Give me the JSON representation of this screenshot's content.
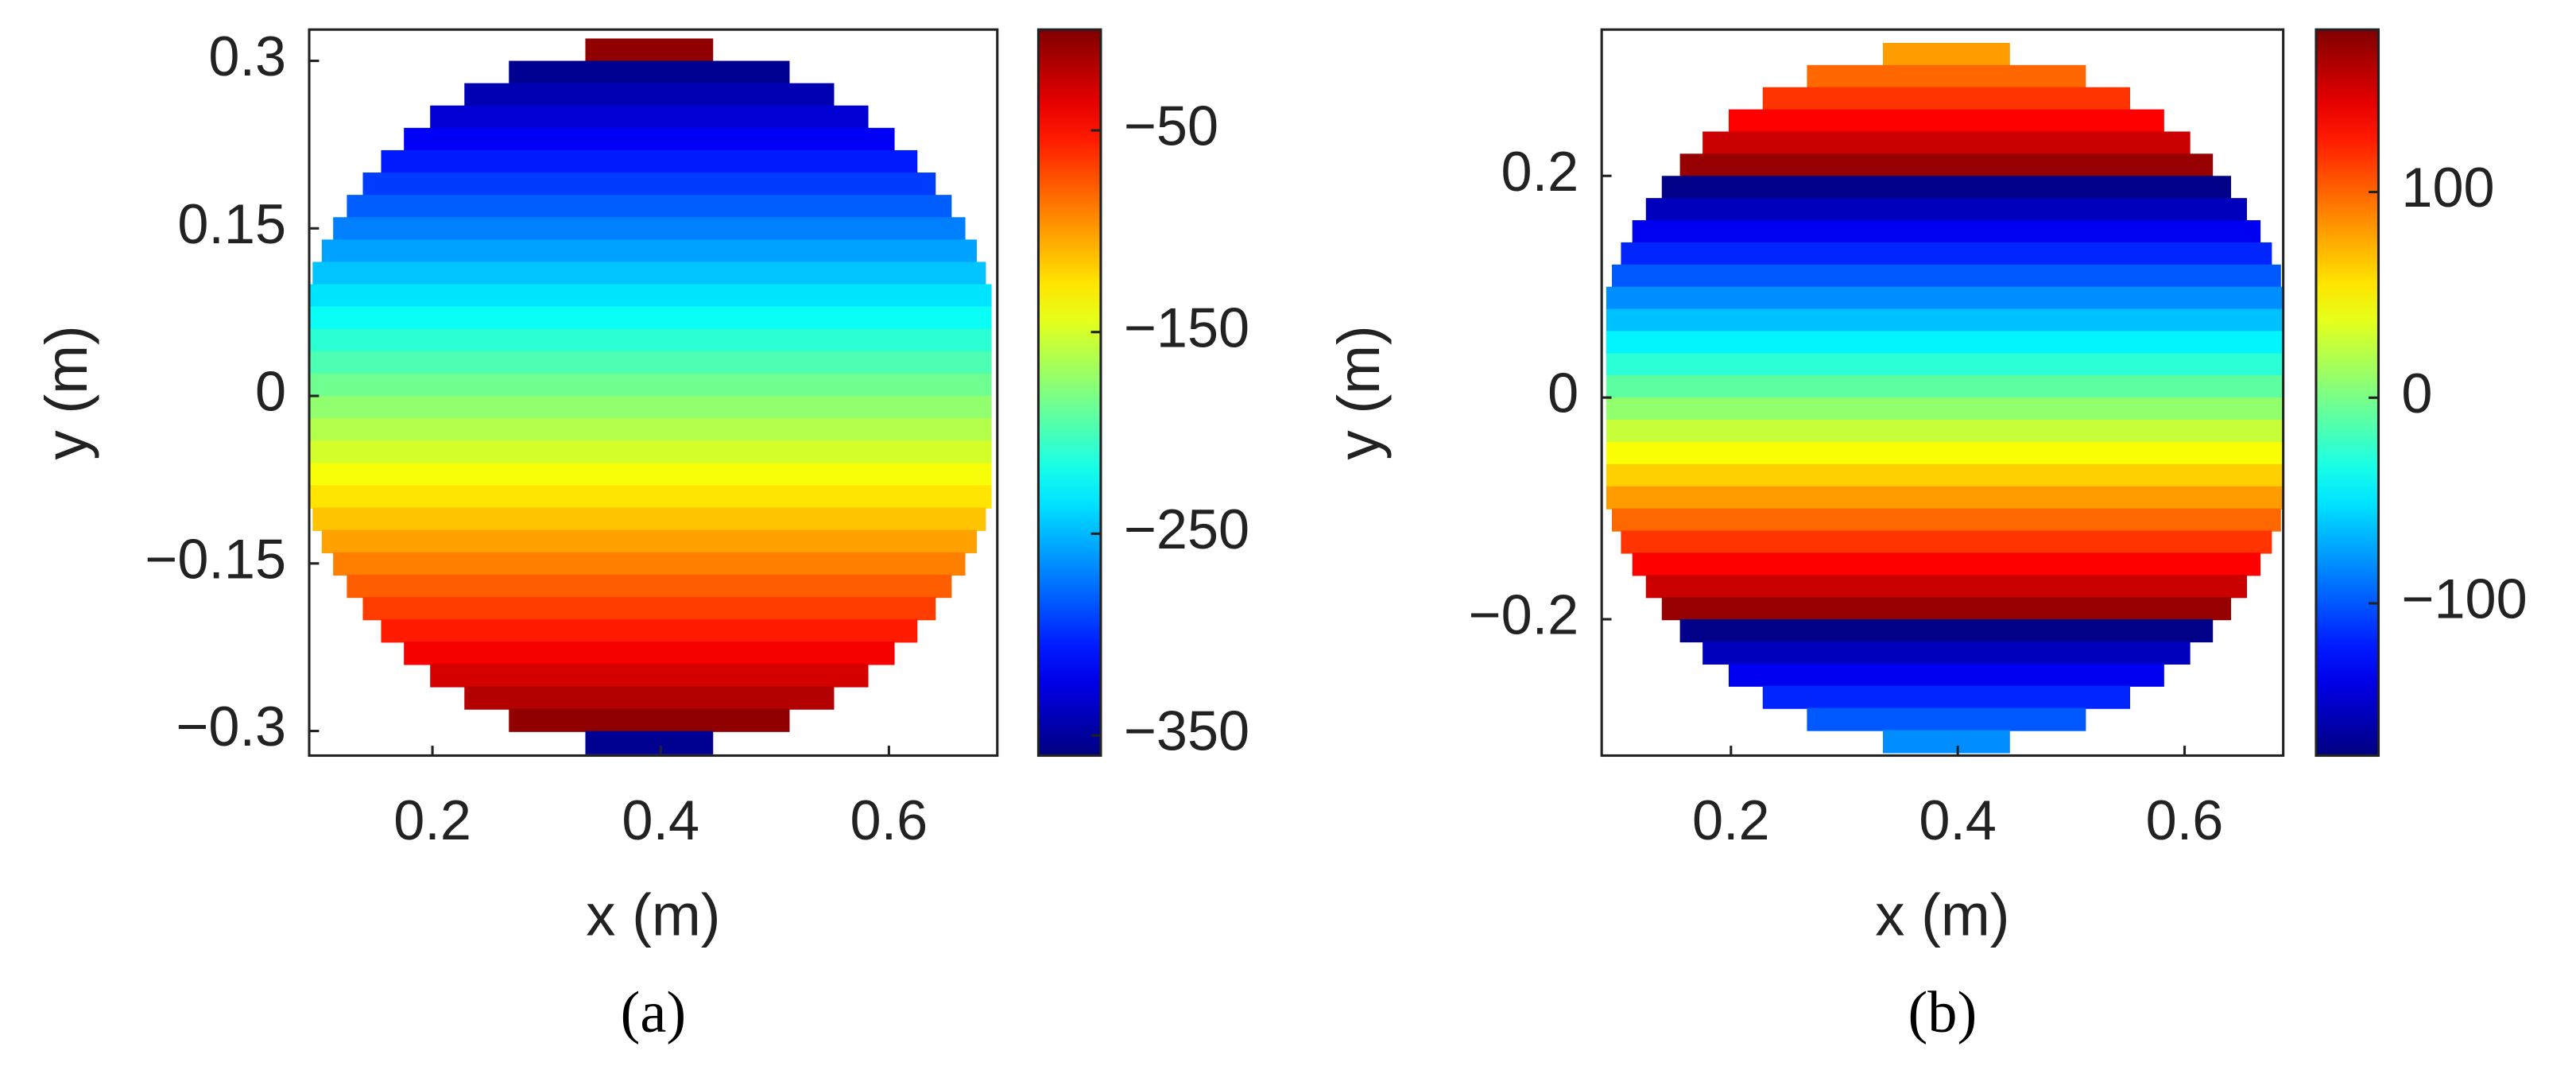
{
  "chart_data": [
    {
      "type": "heatmap",
      "colormap": "jet",
      "caption": "(a)",
      "xlabel": "x (m)",
      "ylabel": "y (m)",
      "xlim": [
        0.092,
        0.695
      ],
      "ylim": [
        -0.322,
        0.328
      ],
      "xticks": [
        0.2,
        0.4,
        0.6
      ],
      "yticks": [
        0.3,
        0.15,
        0,
        {
          "value": -0.15,
          "label": "−0.15"
        },
        {
          "value": -0.3,
          "label": "−0.3"
        }
      ],
      "clim": [
        -360,
        0
      ],
      "cticks": [
        {
          "value": -50,
          "label": "−50"
        },
        {
          "value": -150,
          "label": "−150"
        },
        {
          "value": -250,
          "label": "−250"
        },
        {
          "value": -350,
          "label": "−350"
        }
      ],
      "y": [
        0.31,
        0.29,
        0.27,
        0.25,
        0.23,
        0.21,
        0.19,
        0.17,
        0.15,
        0.13,
        0.11,
        0.09,
        0.07,
        0.05,
        0.03,
        0.01,
        -0.01,
        -0.03,
        -0.05,
        -0.07,
        -0.09,
        -0.11,
        -0.13,
        -0.15,
        -0.17,
        -0.19,
        -0.21,
        -0.23,
        -0.25,
        -0.27,
        -0.29,
        -0.31
      ],
      "x_start": [
        0.334,
        0.267,
        0.228,
        0.198,
        0.175,
        0.155,
        0.139,
        0.125,
        0.113,
        0.103,
        0.095,
        0.09,
        0.09,
        0.09,
        0.09,
        0.09,
        0.09,
        0.09,
        0.09,
        0.09,
        0.09,
        0.095,
        0.103,
        0.113,
        0.125,
        0.139,
        0.155,
        0.175,
        0.198,
        0.228,
        0.267,
        0.334
      ],
      "x_end": [
        0.446,
        0.513,
        0.552,
        0.582,
        0.605,
        0.625,
        0.641,
        0.655,
        0.667,
        0.677,
        0.685,
        0.69,
        0.69,
        0.69,
        0.69,
        0.69,
        0.69,
        0.69,
        0.69,
        0.69,
        0.69,
        0.685,
        0.677,
        0.667,
        0.655,
        0.641,
        0.625,
        0.605,
        0.582,
        0.552,
        0.513,
        0.446
      ],
      "values": [
        -6,
        -354,
        -342,
        -330,
        -318,
        -306,
        -294,
        -282,
        -270,
        -258,
        -246,
        -234,
        -222,
        -210,
        -198,
        -186,
        -174,
        -162,
        -150,
        -138,
        -126,
        -114,
        -102,
        -90,
        -78,
        -66,
        -54,
        -42,
        -30,
        -18,
        -6,
        -354
      ]
    },
    {
      "type": "heatmap",
      "colormap": "jet",
      "caption": "(b)",
      "xlabel": "x (m)",
      "ylabel": "y (m)",
      "xlim": [
        0.086,
        0.687
      ],
      "ylim": [
        -0.323,
        0.332
      ],
      "xticks": [
        0.2,
        0.4,
        0.6
      ],
      "yticks": [
        0.2,
        0,
        {
          "value": -0.2,
          "label": "−0.2"
        }
      ],
      "clim": [
        -174,
        179
      ],
      "cticks": [
        100,
        0,
        {
          "value": -100,
          "label": "−100"
        }
      ],
      "y": [
        0.31,
        0.29,
        0.27,
        0.25,
        0.23,
        0.21,
        0.19,
        0.17,
        0.15,
        0.13,
        0.11,
        0.09,
        0.07,
        0.05,
        0.03,
        0.01,
        -0.01,
        -0.03,
        -0.05,
        -0.07,
        -0.09,
        -0.11,
        -0.13,
        -0.15,
        -0.17,
        -0.19,
        -0.21,
        -0.23,
        -0.25,
        -0.27,
        -0.29,
        -0.31
      ],
      "x_start": [
        0.334,
        0.267,
        0.228,
        0.198,
        0.175,
        0.155,
        0.139,
        0.125,
        0.113,
        0.103,
        0.095,
        0.09,
        0.09,
        0.09,
        0.09,
        0.09,
        0.09,
        0.09,
        0.09,
        0.09,
        0.09,
        0.095,
        0.103,
        0.113,
        0.125,
        0.139,
        0.155,
        0.175,
        0.198,
        0.228,
        0.267,
        0.334
      ],
      "x_end": [
        0.446,
        0.513,
        0.552,
        0.582,
        0.605,
        0.625,
        0.641,
        0.655,
        0.667,
        0.677,
        0.685,
        0.69,
        0.69,
        0.69,
        0.69,
        0.69,
        0.69,
        0.69,
        0.69,
        0.69,
        0.69,
        0.685,
        0.677,
        0.667,
        0.655,
        0.641,
        0.625,
        0.605,
        0.582,
        0.552,
        0.513,
        0.446
      ],
      "values": [
        81,
        99,
        117,
        135,
        153,
        171,
        -171,
        -153,
        -135,
        -117,
        -99,
        -81,
        -63,
        -45,
        -27,
        -9,
        9,
        27,
        45,
        63,
        81,
        99,
        117,
        135,
        153,
        171,
        -171,
        -153,
        -135,
        -117,
        -99,
        -81
      ]
    }
  ]
}
